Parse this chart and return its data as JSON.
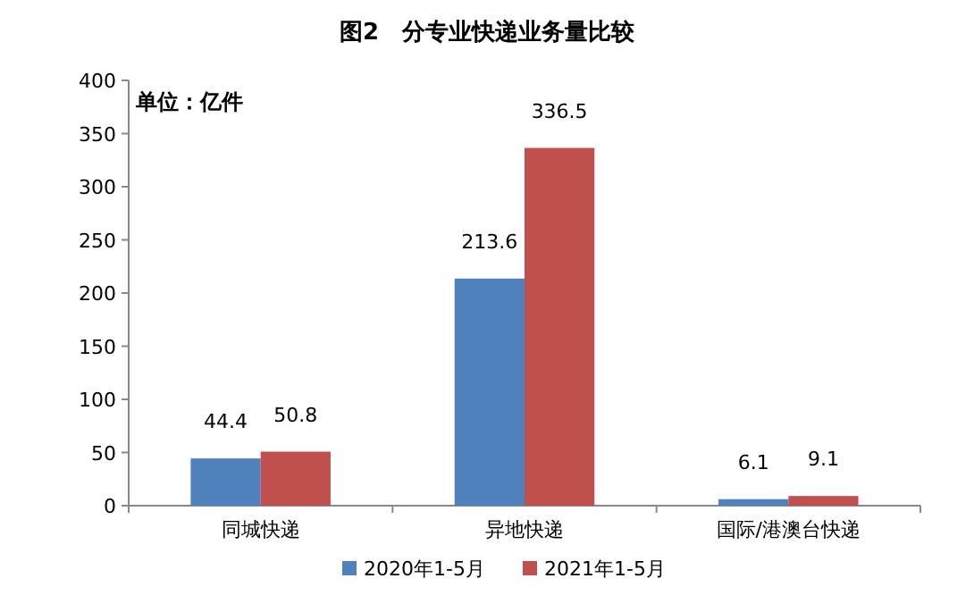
{
  "chart_data": {
    "type": "bar",
    "title": "图2　分专业快递业务量比较",
    "annotations": [
      "单位：亿件"
    ],
    "categories": [
      "同城快递",
      "异地快递",
      "国际/港澳台快递"
    ],
    "series": [
      {
        "name": "2020年1-5月",
        "color": "#4f81bd",
        "values": [
          44.4,
          213.6,
          6.1
        ]
      },
      {
        "name": "2021年1-5月",
        "color": "#c0504d",
        "values": [
          50.8,
          336.5,
          9.1
        ]
      }
    ],
    "ylim": [
      0,
      400
    ],
    "yticks": [
      0,
      50,
      100,
      150,
      200,
      250,
      300,
      350,
      400
    ],
    "data_labels": true,
    "legend": "bottom"
  }
}
